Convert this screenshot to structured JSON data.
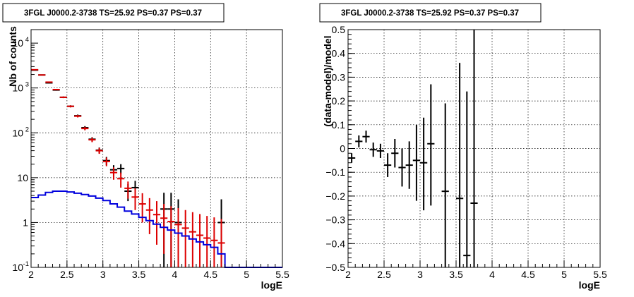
{
  "chart_data": [
    {
      "type": "scatter",
      "title": "3FGL J0000.2-3738 TS=25.92 PS=0.37 PS=0.37",
      "xlabel": "logE",
      "ylabel": "Nb of counts",
      "xlim": [
        2,
        5.5
      ],
      "ylim": [
        0.1,
        20000
      ],
      "yscale": "log",
      "grid": true,
      "x_ticks": [
        {
          "v": 2,
          "label": "2"
        },
        {
          "v": 2.5,
          "label": "2.5"
        },
        {
          "v": 3,
          "label": "3"
        },
        {
          "v": 3.5,
          "label": "3.5"
        },
        {
          "v": 4,
          "label": "4"
        },
        {
          "v": 4.5,
          "label": "4.5"
        },
        {
          "v": 5,
          "label": "5"
        },
        {
          "v": 5.5,
          "label": "5.5"
        }
      ],
      "y_ticks": [
        {
          "v": 0.1,
          "label": "10",
          "exp": "-1"
        },
        {
          "v": 1,
          "label": "1",
          "exp": ""
        },
        {
          "v": 10,
          "label": "10",
          "exp": ""
        },
        {
          "v": 100,
          "label": "10",
          "exp": "2"
        },
        {
          "v": 1000,
          "label": "10",
          "exp": "3"
        },
        {
          "v": 10000,
          "label": "10",
          "exp": "4"
        }
      ],
      "series": [
        {
          "color": "#000000",
          "x": [
            2.05,
            2.15,
            2.25,
            2.35,
            2.45,
            2.55,
            2.65,
            2.75,
            2.85,
            2.95,
            3.05,
            3.15,
            3.25,
            3.35,
            3.45,
            3.85,
            3.95,
            4.05,
            4.65
          ],
          "y": [
            2500,
            1950,
            1300,
            900,
            620,
            390,
            240,
            130,
            72,
            41,
            24,
            15,
            16,
            5,
            6,
            2,
            2,
            1,
            1
          ],
          "ylo": [
            2450,
            1900,
            1265,
            870,
            595,
            370,
            225,
            119,
            64,
            35,
            19,
            11,
            12,
            3,
            4,
            0.1,
            0.1,
            0.1,
            0.1
          ],
          "yhi": [
            2550,
            2000,
            1335,
            930,
            645,
            410,
            255,
            141,
            80,
            47,
            29,
            19,
            20,
            7.2,
            8.5,
            4.6,
            4.6,
            3.3,
            3.3
          ]
        },
        {
          "color": "#dd0000",
          "x": [
            2.05,
            2.15,
            2.25,
            2.35,
            2.45,
            2.55,
            2.65,
            2.75,
            2.85,
            2.95,
            3.05,
            3.15,
            3.25,
            3.35,
            3.45,
            3.55,
            3.65,
            3.75,
            3.85,
            3.95,
            4.05,
            4.15,
            4.25,
            4.35,
            4.45,
            4.55,
            4.65
          ],
          "y": [
            2550,
            1950,
            1350,
            920,
            620,
            390,
            235,
            125,
            70,
            40,
            23,
            13,
            9.5,
            5.8,
            3.7,
            2.6,
            1.9,
            1.5,
            1.25,
            1.05,
            0.9,
            0.75,
            0.62,
            0.52,
            0.45,
            0.4,
            0.35
          ],
          "ylo": [
            2500,
            1910,
            1315,
            890,
            595,
            370,
            220,
            114,
            62,
            34,
            18,
            9,
            6,
            3.4,
            1.9,
            1.0,
            0.55,
            0.32,
            0.2,
            0.1,
            0.1,
            0.1,
            0.1,
            0.1,
            0.1,
            0.1,
            0.1
          ],
          "yhi": [
            2600,
            1990,
            1385,
            950,
            645,
            410,
            250,
            136,
            78,
            46,
            28,
            17,
            13,
            8.2,
            5.8,
            4.5,
            3.5,
            3.0,
            2.6,
            2.3,
            2.1,
            1.9,
            1.7,
            1.55,
            1.4,
            1.3,
            1.2
          ]
        },
        {
          "color": "#0000dd",
          "type": "step",
          "edges": [
            2.0,
            2.1,
            2.2,
            2.3,
            2.4,
            2.5,
            2.6,
            2.7,
            2.8,
            2.9,
            3.0,
            3.1,
            3.2,
            3.3,
            3.4,
            3.5,
            3.6,
            3.7,
            3.8,
            3.9,
            4.0,
            4.1,
            4.2,
            4.3,
            4.4,
            4.5,
            4.6,
            4.7,
            5.5
          ],
          "values": [
            3.6,
            4.1,
            4.7,
            5.0,
            5.0,
            4.8,
            4.5,
            4.2,
            3.9,
            3.5,
            3.1,
            2.6,
            2.2,
            1.8,
            1.55,
            1.3,
            1.1,
            0.92,
            0.78,
            0.68,
            0.58,
            0.5,
            0.43,
            0.37,
            0.32,
            0.28,
            0.2,
            0.1
          ]
        }
      ]
    },
    {
      "type": "scatter",
      "title": "3FGL J0000.2-3738 TS=25.92 PS=0.37 PS=0.37",
      "xlabel": "logE",
      "ylabel": "(data-model)/model",
      "xlim": [
        2,
        5.5
      ],
      "ylim": [
        -0.5,
        0.5
      ],
      "grid": true,
      "x_ticks": [
        {
          "v": 2,
          "label": "2"
        },
        {
          "v": 2.5,
          "label": "2.5"
        },
        {
          "v": 3,
          "label": "3"
        },
        {
          "v": 3.5,
          "label": "3.5"
        },
        {
          "v": 4,
          "label": "4"
        },
        {
          "v": 4.5,
          "label": "4.5"
        },
        {
          "v": 5,
          "label": "5"
        },
        {
          "v": 5.5,
          "label": "5.5"
        }
      ],
      "y_ticks": [
        {
          "v": -0.5,
          "label": "−0.5"
        },
        {
          "v": -0.4,
          "label": "−0.4"
        },
        {
          "v": -0.3,
          "label": "−0.3"
        },
        {
          "v": -0.2,
          "label": "−0.2"
        },
        {
          "v": -0.1,
          "label": "−0.1"
        },
        {
          "v": 0,
          "label": "0"
        },
        {
          "v": 0.1,
          "label": "0.1"
        },
        {
          "v": 0.2,
          "label": "0.2"
        },
        {
          "v": 0.3,
          "label": "0.3"
        },
        {
          "v": 0.4,
          "label": "0.4"
        },
        {
          "v": 0.5,
          "label": "0.5"
        }
      ],
      "series": [
        {
          "color": "#000000",
          "x": [
            2.05,
            2.15,
            2.25,
            2.35,
            2.45,
            2.55,
            2.65,
            2.75,
            2.85,
            2.95,
            3.05,
            3.15,
            3.35,
            3.55,
            3.65,
            3.75
          ],
          "y": [
            -0.04,
            0.03,
            0.05,
            -0.005,
            -0.01,
            -0.07,
            -0.02,
            -0.08,
            -0.07,
            -0.05,
            -0.06,
            0.02,
            -0.18,
            -0.21,
            -0.45,
            -0.23
          ],
          "ylo": [
            -0.06,
            0.005,
            0.025,
            -0.035,
            -0.04,
            -0.12,
            -0.08,
            -0.16,
            -0.17,
            -0.22,
            -0.26,
            -0.24,
            -0.55,
            -0.55,
            -0.55,
            -0.55
          ],
          "yhi": [
            -0.02,
            0.055,
            0.075,
            0.025,
            0.02,
            -0.02,
            0.04,
            0.0,
            0.03,
            0.1,
            0.13,
            0.27,
            0.19,
            0.36,
            0.24,
            0.55
          ]
        }
      ]
    }
  ]
}
